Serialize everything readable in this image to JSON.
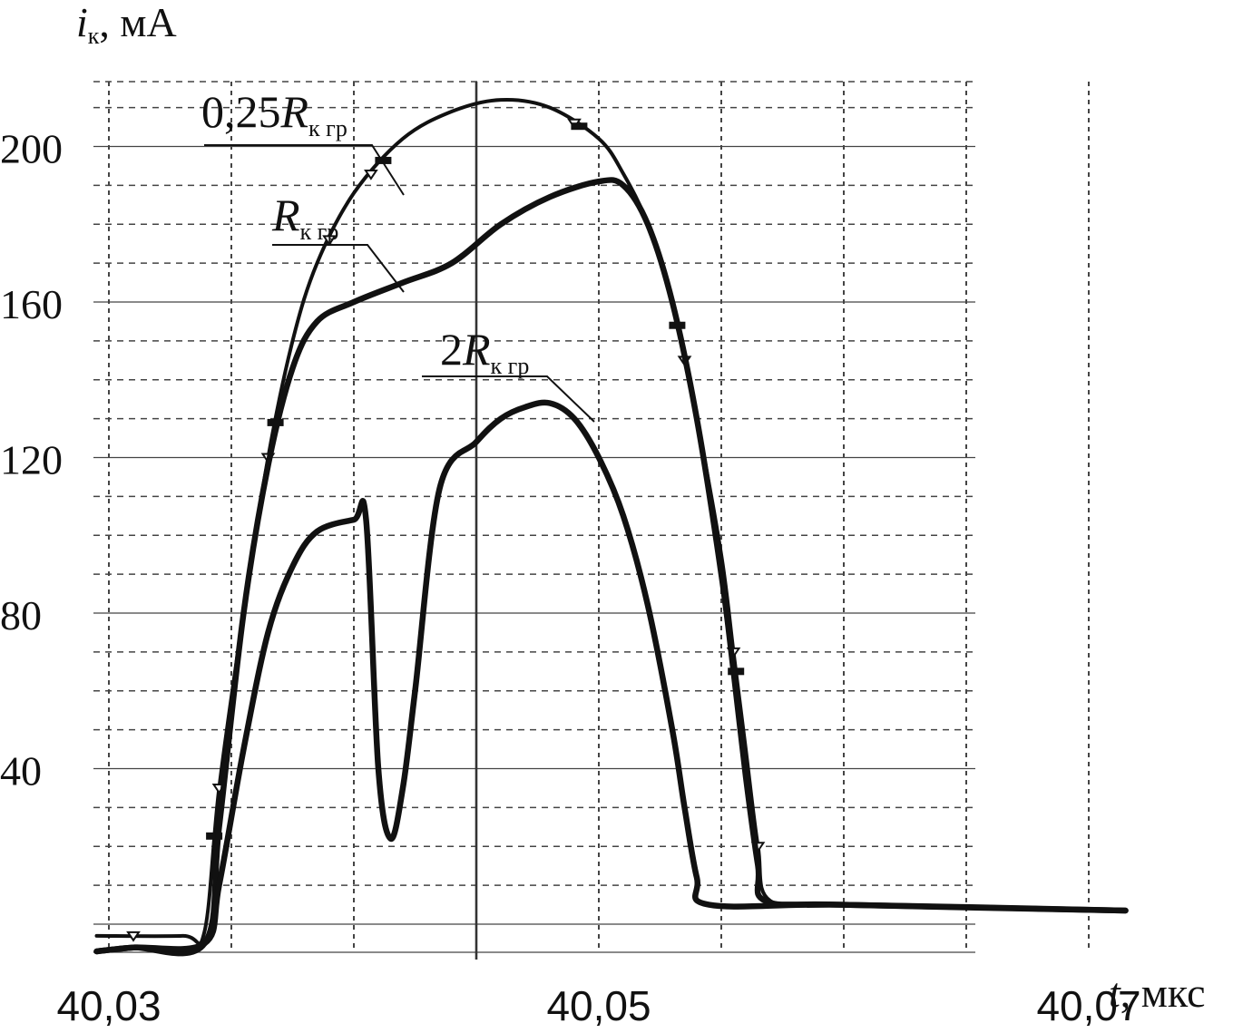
{
  "chart_data": {
    "type": "line",
    "xlabel_var": "t",
    "xlabel_unit": ", мкс",
    "ylabel_var": "i",
    "ylabel_sub": "к",
    "ylabel_unit": ", мА",
    "xlim": [
      40.03,
      40.07
    ],
    "ylim": [
      -8,
      215
    ],
    "x_ticks": [
      {
        "value": 40.03,
        "label": "40,03"
      },
      {
        "value": 40.05,
        "label": "40,05"
      },
      {
        "value": 40.07,
        "label": "40,07"
      }
    ],
    "y_ticks": [
      {
        "value": 40,
        "label": "40"
      },
      {
        "value": 80,
        "label": "80"
      },
      {
        "value": 120,
        "label": "120"
      },
      {
        "value": 160,
        "label": "160"
      },
      {
        "value": 200,
        "label": "200"
      }
    ],
    "grid": true,
    "series": [
      {
        "name_prefix": "0,25",
        "name_var": "R",
        "name_sub": "к гр",
        "style": "thin-with-markers",
        "points": [
          [
            40.0295,
            -3
          ],
          [
            40.033,
            -3
          ],
          [
            40.0339,
            -2
          ],
          [
            40.0345,
            35
          ],
          [
            40.0355,
            80
          ],
          [
            40.0365,
            120
          ],
          [
            40.0375,
            150
          ],
          [
            40.0385,
            170
          ],
          [
            40.04,
            188
          ],
          [
            40.042,
            202
          ],
          [
            40.044,
            209
          ],
          [
            40.046,
            212
          ],
          [
            40.048,
            210
          ],
          [
            40.05,
            202
          ],
          [
            40.051,
            193
          ],
          [
            40.052,
            180
          ],
          [
            40.053,
            160
          ],
          [
            40.054,
            130
          ],
          [
            40.055,
            95
          ],
          [
            40.0555,
            70
          ],
          [
            40.056,
            45
          ],
          [
            40.0565,
            20
          ],
          [
            40.057,
            6
          ],
          [
            40.06,
            5
          ],
          [
            40.0715,
            3.5
          ]
        ]
      },
      {
        "name_prefix": "",
        "name_var": "R",
        "name_sub": "к гр",
        "style": "thick",
        "points": [
          [
            40.0295,
            -7
          ],
          [
            40.031,
            -6
          ],
          [
            40.0339,
            -5
          ],
          [
            40.0345,
            25
          ],
          [
            40.0355,
            80
          ],
          [
            40.0365,
            118
          ],
          [
            40.0375,
            143
          ],
          [
            40.0385,
            155
          ],
          [
            40.04,
            160
          ],
          [
            40.042,
            165
          ],
          [
            40.044,
            170
          ],
          [
            40.046,
            180
          ],
          [
            40.048,
            187
          ],
          [
            40.05,
            191
          ],
          [
            40.051,
            190
          ],
          [
            40.052,
            180
          ],
          [
            40.053,
            160
          ],
          [
            40.054,
            130
          ],
          [
            40.055,
            90
          ],
          [
            40.0555,
            65
          ],
          [
            40.056,
            38
          ],
          [
            40.0565,
            15
          ],
          [
            40.0568,
            6
          ],
          [
            40.06,
            5
          ],
          [
            40.0715,
            3.5
          ]
        ]
      },
      {
        "name_prefix": "2",
        "name_var": "R",
        "name_sub": "к гр",
        "style": "thick",
        "points": [
          [
            40.0295,
            -7
          ],
          [
            40.031,
            -6
          ],
          [
            40.0339,
            -5
          ],
          [
            40.0345,
            10
          ],
          [
            40.0355,
            45
          ],
          [
            40.0365,
            75
          ],
          [
            40.0375,
            92
          ],
          [
            40.0385,
            101
          ],
          [
            40.04,
            104
          ],
          [
            40.0405,
            104
          ],
          [
            40.041,
            40
          ],
          [
            40.0415,
            22
          ],
          [
            40.042,
            35
          ],
          [
            40.0425,
            60
          ],
          [
            40.0435,
            112
          ],
          [
            40.045,
            124
          ],
          [
            40.046,
            130
          ],
          [
            40.047,
            133
          ],
          [
            40.048,
            134
          ],
          [
            40.049,
            130
          ],
          [
            40.05,
            120
          ],
          [
            40.051,
            105
          ],
          [
            40.052,
            82
          ],
          [
            40.053,
            50
          ],
          [
            40.0535,
            30
          ],
          [
            40.054,
            12
          ],
          [
            40.0545,
            5
          ],
          [
            40.06,
            5
          ],
          [
            40.0715,
            3.5
          ]
        ]
      }
    ]
  }
}
